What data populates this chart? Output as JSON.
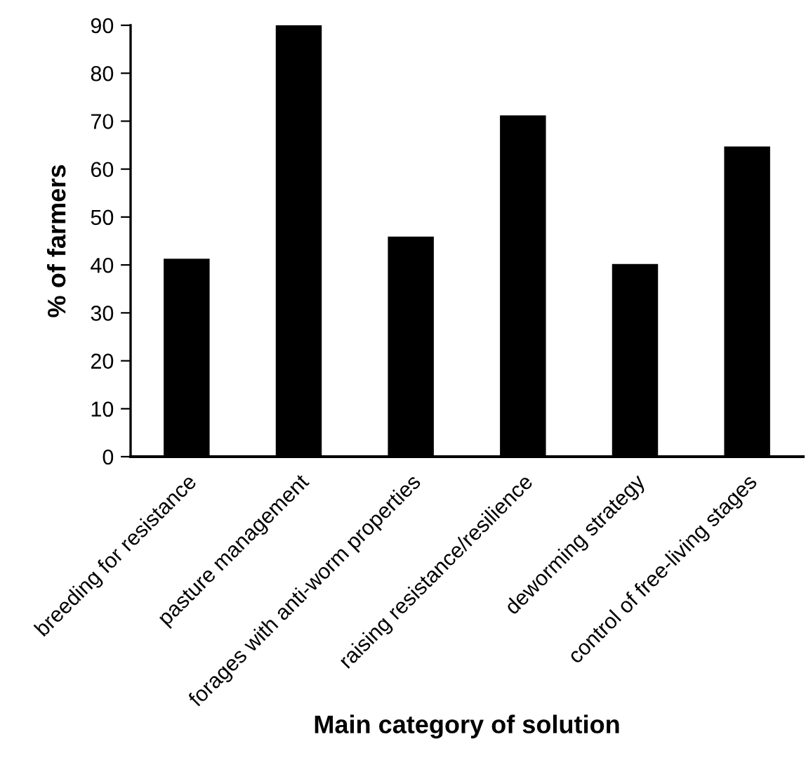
{
  "chart_data": {
    "type": "bar",
    "xlabel": "Main category of solution",
    "ylabel": "% of farmers",
    "categories": [
      "breeding for resistance",
      "pasture management",
      "forages with anti-worm properties",
      "raising resistance/resilience",
      "deworming strategy",
      "control of free-living stages"
    ],
    "values": [
      41.3,
      90,
      45.9,
      71.2,
      40.2,
      64.7
    ],
    "color": "#000000",
    "ylim": [
      0,
      90
    ],
    "yticks": [
      0,
      10,
      20,
      30,
      40,
      50,
      60,
      70,
      80,
      90
    ],
    "grid": false,
    "legend": false
  }
}
